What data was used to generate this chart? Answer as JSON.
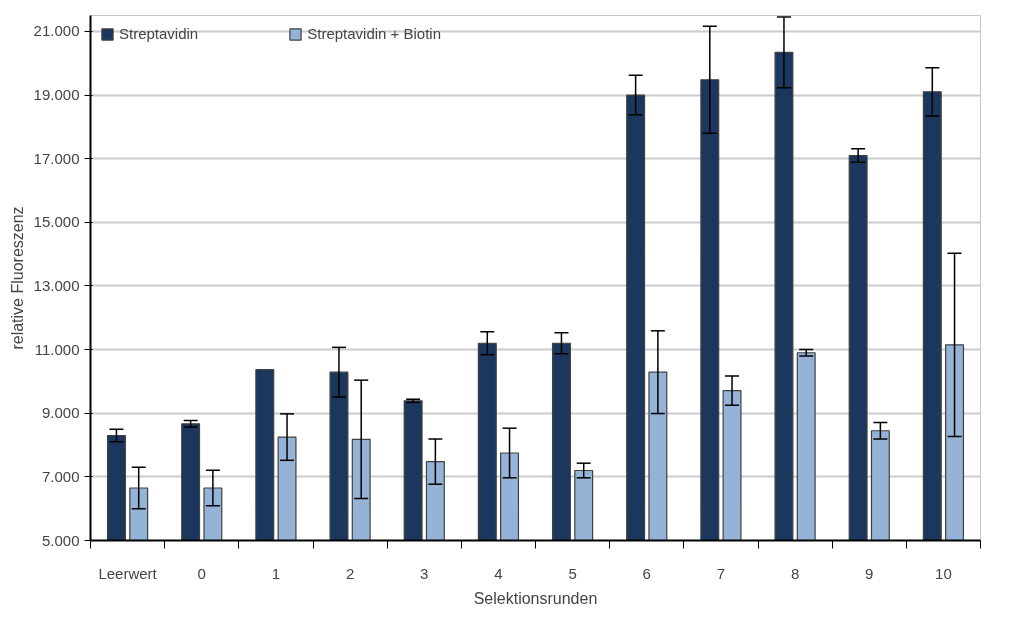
{
  "chart_data": {
    "type": "bar",
    "xlabel": "Selektionsrunden",
    "ylabel": "relative Fluoreszenz",
    "categories": [
      "Leerwert",
      "0",
      "1",
      "2",
      "3",
      "4",
      "5",
      "6",
      "7",
      "8",
      "9",
      "10"
    ],
    "series": [
      {
        "name": "Streptavidin",
        "color": "#1b375e",
        "values": [
          8300,
          8670,
          10370,
          10290,
          9390,
          11200,
          11200,
          19000,
          19480,
          20340,
          17100,
          19100
        ],
        "errors": [
          200,
          100,
          null,
          780,
          50,
          360,
          330,
          620,
          1680,
          1110,
          210,
          760
        ]
      },
      {
        "name": "Streptavidin + Biotin",
        "color": "#95b3d7",
        "values": [
          6650,
          6650,
          8250,
          8180,
          7480,
          7750,
          7200,
          10290,
          9710,
          10900,
          8450,
          11150
        ],
        "errors": [
          650,
          560,
          730,
          1860,
          710,
          780,
          230,
          1300,
          460,
          100,
          260,
          2880
        ]
      }
    ],
    "ylim": [
      5000,
      21500
    ],
    "yticks": [
      {
        "value": 5000,
        "label": "5.000"
      },
      {
        "value": 7000,
        "label": "7.000"
      },
      {
        "value": 9000,
        "label": "9.000"
      },
      {
        "value": 11000,
        "label": "11.000"
      },
      {
        "value": 13000,
        "label": "13.000"
      },
      {
        "value": 15000,
        "label": "15.000"
      },
      {
        "value": 17000,
        "label": "17.000"
      },
      {
        "value": 19000,
        "label": "19.000"
      },
      {
        "value": 21000,
        "label": "21.000"
      }
    ],
    "grid": "y",
    "legend": "top left"
  }
}
